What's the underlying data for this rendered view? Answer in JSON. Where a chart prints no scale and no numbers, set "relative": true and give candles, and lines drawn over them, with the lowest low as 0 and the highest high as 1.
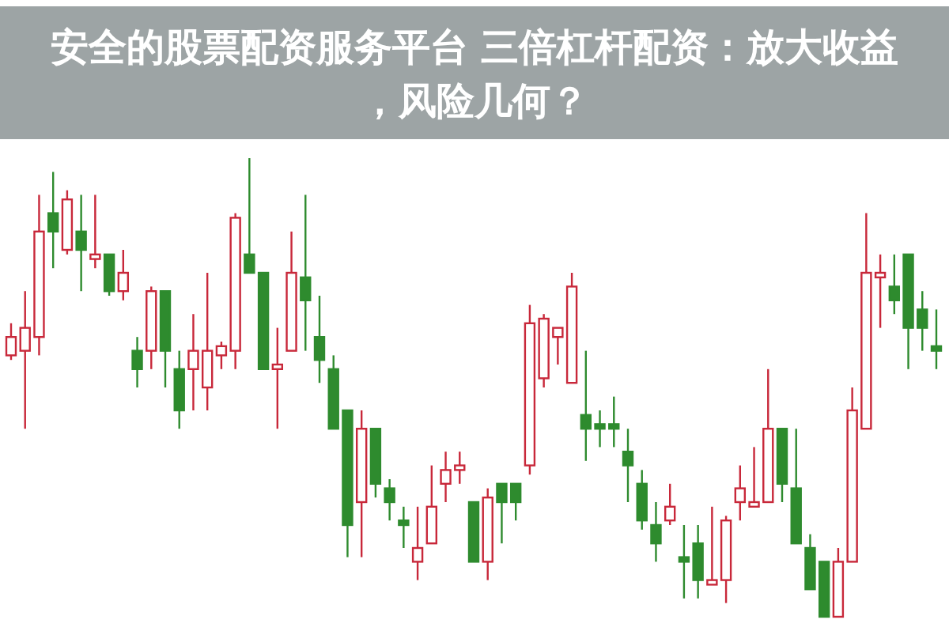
{
  "chart_data": {
    "type": "candlestick",
    "title": "安全的股票配资服务平台 三倍杠杆配资：放大收益，风险几何？",
    "relative": true,
    "categories": [
      null,
      null,
      null,
      null,
      null,
      null,
      null,
      null,
      null,
      null,
      null,
      null,
      null,
      null,
      null,
      null,
      null,
      null,
      null,
      null,
      null,
      null,
      null,
      null,
      null,
      null,
      null,
      null,
      null,
      null,
      null,
      null,
      null,
      null,
      null,
      null,
      null,
      null,
      null,
      null,
      null,
      null,
      null,
      null,
      null,
      null,
      null,
      null,
      null,
      null,
      null,
      null,
      null,
      null,
      null,
      null,
      null,
      null,
      null,
      null,
      null,
      null,
      null,
      null,
      null,
      null,
      null
    ],
    "ohlc": [
      [
        0.57,
        0.64,
        0.56,
        0.61
      ],
      [
        0.58,
        0.71,
        0.41,
        0.63
      ],
      [
        0.61,
        0.92,
        0.57,
        0.84
      ],
      [
        0.88,
        0.97,
        0.76,
        0.84
      ],
      [
        0.8,
        0.93,
        0.79,
        0.91
      ],
      [
        0.84,
        0.92,
        0.71,
        0.8
      ],
      [
        0.78,
        0.92,
        0.76,
        0.79
      ],
      [
        0.79,
        0.79,
        0.7,
        0.71
      ],
      [
        0.71,
        0.8,
        0.69,
        0.75
      ],
      [
        0.58,
        0.61,
        0.5,
        0.54
      ],
      [
        0.58,
        0.72,
        0.54,
        0.71
      ],
      [
        0.71,
        0.71,
        0.5,
        0.58
      ],
      [
        0.54,
        0.58,
        0.41,
        0.45
      ],
      [
        0.54,
        0.66,
        0.45,
        0.58
      ],
      [
        0.5,
        0.75,
        0.45,
        0.58
      ],
      [
        0.57,
        0.6,
        0.54,
        0.59
      ],
      [
        0.58,
        0.88,
        0.54,
        0.87
      ],
      [
        0.79,
        1.0,
        0.75,
        0.75
      ],
      [
        0.75,
        0.75,
        0.54,
        0.54
      ],
      [
        0.54,
        0.63,
        0.41,
        0.55
      ],
      [
        0.58,
        0.84,
        0.58,
        0.75
      ],
      [
        0.74,
        0.92,
        0.58,
        0.69
      ],
      [
        0.61,
        0.7,
        0.51,
        0.56
      ],
      [
        0.54,
        0.57,
        0.41,
        0.41
      ],
      [
        0.45,
        0.45,
        0.13,
        0.2
      ],
      [
        0.25,
        0.45,
        0.13,
        0.41
      ],
      [
        0.41,
        0.41,
        0.26,
        0.29
      ],
      [
        0.28,
        0.3,
        0.21,
        0.25
      ],
      [
        0.21,
        0.24,
        0.15,
        0.2
      ],
      [
        0.12,
        0.24,
        0.08,
        0.15
      ],
      [
        0.16,
        0.33,
        0.16,
        0.24
      ],
      [
        0.29,
        0.36,
        0.25,
        0.32
      ],
      [
        0.32,
        0.36,
        0.29,
        0.33
      ],
      [
        0.25,
        0.25,
        0.12,
        0.12
      ],
      [
        0.12,
        0.28,
        0.08,
        0.26
      ],
      [
        0.29,
        0.29,
        0.16,
        0.25
      ],
      [
        0.29,
        0.29,
        0.21,
        0.25
      ],
      [
        0.33,
        0.68,
        0.31,
        0.64
      ],
      [
        0.52,
        0.66,
        0.5,
        0.65
      ],
      [
        0.61,
        0.63,
        0.55,
        0.63
      ],
      [
        0.51,
        0.75,
        0.51,
        0.72
      ],
      [
        0.44,
        0.58,
        0.34,
        0.41
      ],
      [
        0.42,
        0.45,
        0.37,
        0.41
      ],
      [
        0.42,
        0.48,
        0.37,
        0.41
      ],
      [
        0.36,
        0.41,
        0.25,
        0.33
      ],
      [
        0.29,
        0.32,
        0.19,
        0.21
      ],
      [
        0.2,
        0.25,
        0.12,
        0.16
      ],
      [
        0.21,
        0.29,
        0.2,
        0.24
      ],
      [
        0.13,
        0.2,
        0.04,
        0.12
      ],
      [
        0.16,
        0.2,
        0.04,
        0.08
      ],
      [
        0.07,
        0.24,
        0.07,
        0.08
      ],
      [
        0.08,
        0.22,
        0.03,
        0.21
      ],
      [
        0.25,
        0.33,
        0.21,
        0.28
      ],
      [
        0.24,
        0.37,
        0.24,
        0.25
      ],
      [
        0.25,
        0.54,
        0.25,
        0.41
      ],
      [
        0.41,
        0.41,
        0.25,
        0.29
      ],
      [
        0.28,
        0.41,
        0.16,
        0.16
      ],
      [
        0.15,
        0.18,
        0.06,
        0.06
      ],
      [
        0.12,
        0.12,
        0,
        0
      ],
      [
        0,
        0.15,
        0,
        0.12
      ],
      [
        0.12,
        0.5,
        0.12,
        0.45
      ],
      [
        0.41,
        0.88,
        0.41,
        0.75
      ],
      [
        0.74,
        0.79,
        0.63,
        0.75
      ],
      [
        0.72,
        0.79,
        0.66,
        0.69
      ],
      [
        0.79,
        0.79,
        0.54,
        0.63
      ],
      [
        0.67,
        0.71,
        0.58,
        0.63
      ],
      [
        0.59,
        0.67,
        0.54,
        0.58
      ]
    ]
  }
}
